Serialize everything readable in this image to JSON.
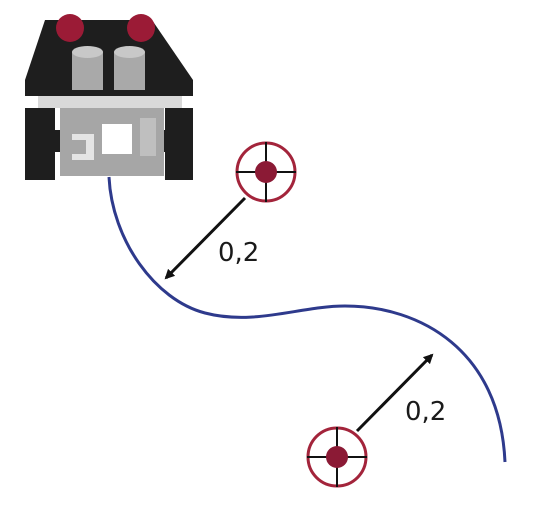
{
  "colors": {
    "path": "#2e3a8c",
    "target_ring": "#a3243b",
    "target_dot": "#8b1a35",
    "crosshair": "#111111",
    "arrow": "#111111",
    "robot_body": "#1e1e1e",
    "robot_plate": "#d9d9d9",
    "robot_block": "#a6a6a6",
    "robot_cylinder": "#b8b8b8",
    "robot_sensor": "#9b1b36",
    "robot_window": "#ffffff"
  },
  "icons": {
    "robot": "line-follower-robot",
    "target": "crosshair-target"
  },
  "targets": [
    {
      "name": "target-1",
      "distance_label": "0,2"
    },
    {
      "name": "target-2",
      "distance_label": "0,2"
    }
  ]
}
